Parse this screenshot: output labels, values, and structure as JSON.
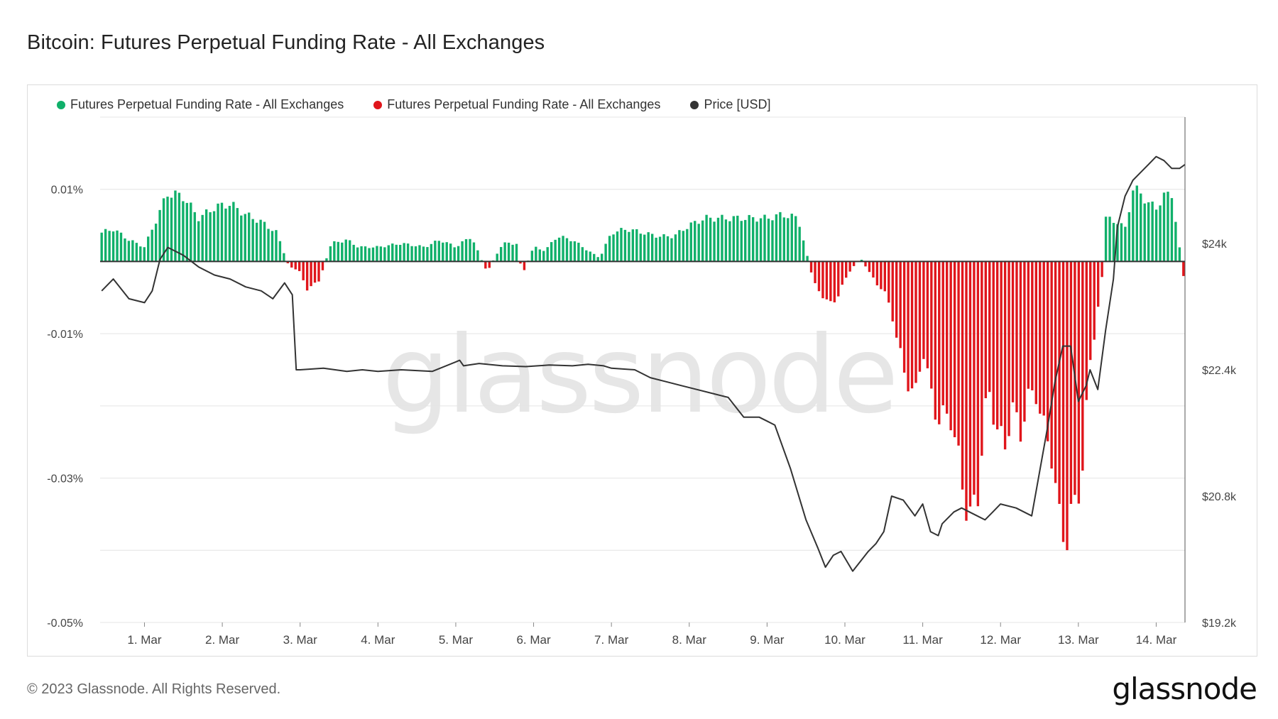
{
  "title": "Bitcoin: Futures Perpetual Funding Rate - All Exchanges",
  "legend": [
    {
      "label": "Futures Perpetual Funding Rate - All Exchanges",
      "color": "#10b06a"
    },
    {
      "label": "Futures Perpetual Funding Rate - All Exchanges",
      "color": "#e0151b"
    },
    {
      "label": "Price [USD]",
      "color": "#333333"
    }
  ],
  "watermark": "glassnode",
  "copyright": "© 2023 Glassnode. All Rights Reserved.",
  "brand": "glassnode",
  "chart_data": {
    "type": "bar",
    "x_ticks": [
      "1. Mar",
      "2. Mar",
      "3. Mar",
      "4. Mar",
      "5. Mar",
      "6. Mar",
      "7. Mar",
      "8. Mar",
      "9. Mar",
      "10. Mar",
      "11. Mar",
      "12. Mar",
      "13. Mar",
      "14. Mar"
    ],
    "y_left_ticks": [
      "0.01%",
      "-0.01%",
      "-0.03%",
      "-0.05%"
    ],
    "y_left_tick_values": [
      0.01,
      -0.01,
      -0.03,
      -0.05
    ],
    "y_left_range": [
      -0.05,
      0.02
    ],
    "y_right_ticks": [
      "$24k",
      "$22.4k",
      "$20.8k",
      "$19.2k"
    ],
    "y_right_tick_values": [
      24000,
      22400,
      20800,
      19200
    ],
    "y_right_range": [
      19200,
      25600
    ],
    "x_range_days": [
      0.43,
      14.37
    ],
    "grid": true,
    "legend_position": "top-left",
    "colors": {
      "positive": "#10b06a",
      "negative": "#e0151b",
      "price": "#333333",
      "zero_line": "#333333"
    },
    "funding_rate_percent": {
      "anchors_x": [
        0.45,
        0.6,
        0.8,
        1.0,
        1.3,
        1.5,
        1.7,
        1.9,
        2.1,
        2.3,
        2.5,
        2.7,
        2.85,
        3.0,
        3.1,
        3.25,
        3.4,
        3.6,
        3.75,
        3.9,
        4.0,
        4.3,
        4.6,
        4.8,
        5.0,
        5.2,
        5.4,
        5.6,
        5.8,
        5.85,
        6.0,
        6.15,
        6.3,
        6.5,
        6.7,
        6.85,
        7.0,
        7.2,
        7.4,
        7.6,
        7.8,
        8.0,
        8.2,
        8.4,
        8.6,
        8.8,
        9.0,
        9.2,
        9.4,
        9.6,
        9.8,
        9.9,
        10.05,
        10.2,
        10.4,
        10.5,
        10.6,
        10.75,
        10.9,
        11.0,
        11.1,
        11.2,
        11.35,
        11.5,
        11.6,
        11.7,
        11.8,
        11.85,
        11.95,
        12.05,
        12.15,
        12.25,
        12.35,
        12.45,
        12.55,
        12.65,
        12.75,
        12.85,
        12.95,
        13.05,
        13.15,
        13.3,
        13.35,
        13.5,
        13.6,
        13.7,
        13.8,
        13.9,
        14.0,
        14.1,
        14.2,
        14.35
      ],
      "anchors_y": [
        0.004,
        0.0045,
        0.003,
        0.002,
        0.0095,
        0.009,
        0.006,
        0.0075,
        0.008,
        0.0065,
        0.0055,
        0.004,
        -0.0005,
        -0.0015,
        -0.004,
        -0.0025,
        0.0025,
        0.003,
        0.002,
        0.002,
        0.002,
        0.0025,
        0.002,
        0.003,
        0.002,
        0.0035,
        -0.0015,
        0.0025,
        0.0025,
        -0.002,
        0.002,
        0.0015,
        0.0035,
        0.003,
        0.0015,
        0.0005,
        0.004,
        0.0045,
        0.004,
        0.0035,
        0.0035,
        0.005,
        0.006,
        0.006,
        0.006,
        0.006,
        0.006,
        0.0065,
        0.006,
        -0.003,
        -0.006,
        -0.005,
        -0.0015,
        0.0005,
        -0.003,
        -0.004,
        -0.007,
        -0.015,
        -0.019,
        -0.012,
        -0.018,
        -0.022,
        -0.021,
        -0.03,
        -0.036,
        -0.033,
        -0.021,
        -0.018,
        -0.023,
        -0.026,
        -0.02,
        -0.024,
        -0.019,
        -0.018,
        -0.023,
        -0.026,
        -0.036,
        -0.038,
        -0.034,
        -0.029,
        -0.014,
        -0.003,
        0.006,
        0.0055,
        0.0045,
        0.01,
        0.0095,
        0.008,
        0.0075,
        0.009,
        0.0095,
        -0.002
      ],
      "bar_count": 280
    },
    "price_usd": {
      "x": [
        0.45,
        0.6,
        0.8,
        1.0,
        1.1,
        1.2,
        1.3,
        1.5,
        1.7,
        1.9,
        2.1,
        2.3,
        2.5,
        2.65,
        2.8,
        2.9,
        2.95,
        3.0,
        3.3,
        3.6,
        3.8,
        4.0,
        4.3,
        4.7,
        5.0,
        5.05,
        5.1,
        5.3,
        5.6,
        5.9,
        6.2,
        6.5,
        6.7,
        6.9,
        7.0,
        7.3,
        7.5,
        7.7,
        7.9,
        8.1,
        8.3,
        8.5,
        8.7,
        8.9,
        9.0,
        9.1,
        9.3,
        9.5,
        9.65,
        9.75,
        9.85,
        9.95,
        10.1,
        10.3,
        10.4,
        10.5,
        10.6,
        10.75,
        10.9,
        11.0,
        11.1,
        11.2,
        11.25,
        11.4,
        11.5,
        11.6,
        11.7,
        11.8,
        11.9,
        12.0,
        12.2,
        12.4,
        12.6,
        12.7,
        12.8,
        12.9,
        13.0,
        13.1,
        13.15,
        13.25,
        13.35,
        13.45,
        13.5,
        13.6,
        13.7,
        13.8,
        13.9,
        14.0,
        14.1,
        14.2,
        14.3,
        14.37
      ],
      "y": [
        23400,
        23550,
        23300,
        23250,
        23400,
        23800,
        23950,
        23850,
        23700,
        23600,
        23550,
        23450,
        23400,
        23300,
        23500,
        23350,
        22400,
        22400,
        22420,
        22380,
        22400,
        22380,
        22400,
        22380,
        22500,
        22520,
        22450,
        22480,
        22450,
        22440,
        22460,
        22450,
        22470,
        22450,
        22420,
        22400,
        22300,
        22250,
        22200,
        22150,
        22100,
        22050,
        21800,
        21800,
        21750,
        21700,
        21150,
        20500,
        20150,
        19900,
        20050,
        20100,
        19850,
        20100,
        20200,
        20350,
        20800,
        20750,
        20550,
        20700,
        20350,
        20300,
        20450,
        20600,
        20650,
        20600,
        20550,
        20500,
        20600,
        20700,
        20650,
        20550,
        21650,
        22250,
        22700,
        22700,
        22000,
        22200,
        22400,
        22150,
        22900,
        23550,
        24200,
        24600,
        24800,
        24900,
        25000,
        25100,
        25050,
        24950,
        24950,
        25000
      ]
    }
  }
}
